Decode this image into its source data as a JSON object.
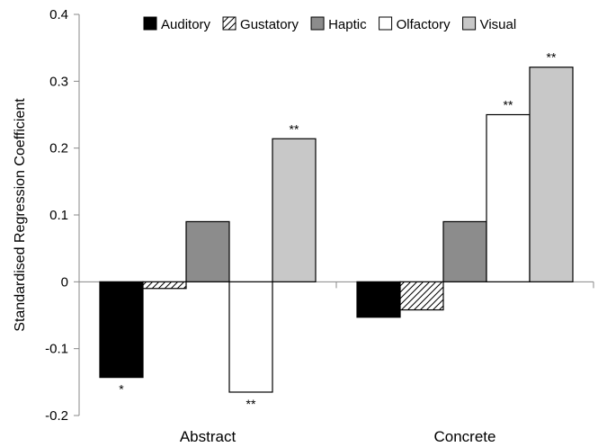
{
  "chart_data": {
    "type": "bar",
    "title": "",
    "xlabel": "",
    "ylabel": "Standardised Regression Coefficient",
    "ylim": [
      -0.2,
      0.4
    ],
    "yticks": [
      0.4,
      0.3,
      0.2,
      0.1,
      0,
      -0.1,
      -0.2
    ],
    "ytick_labels": [
      "0.4",
      "0.3",
      "0.2",
      "0.1",
      "0",
      "-0.1",
      "-0.2"
    ],
    "categories": [
      "Abstract",
      "Concrete"
    ],
    "grid": false,
    "legend_position": "top",
    "series": [
      {
        "name": "Auditory",
        "fill": "#000000",
        "pattern": "solid",
        "values": [
          -0.143,
          -0.053
        ],
        "significance": [
          "*",
          ""
        ]
      },
      {
        "name": "Gustatory",
        "fill": "#ffffff",
        "pattern": "hatch",
        "values": [
          -0.01,
          -0.042
        ],
        "significance": [
          "",
          ""
        ]
      },
      {
        "name": "Haptic",
        "fill": "#8c8c8c",
        "pattern": "solid",
        "values": [
          0.09,
          0.09
        ],
        "significance": [
          "",
          ""
        ]
      },
      {
        "name": "Olfactory",
        "fill": "#ffffff",
        "pattern": "solid",
        "values": [
          -0.165,
          0.25
        ],
        "significance": [
          "**",
          "**"
        ]
      },
      {
        "name": "Visual",
        "fill": "#c8c8c8",
        "pattern": "solid",
        "values": [
          0.214,
          0.321
        ],
        "significance": [
          "**",
          "**"
        ]
      }
    ]
  }
}
